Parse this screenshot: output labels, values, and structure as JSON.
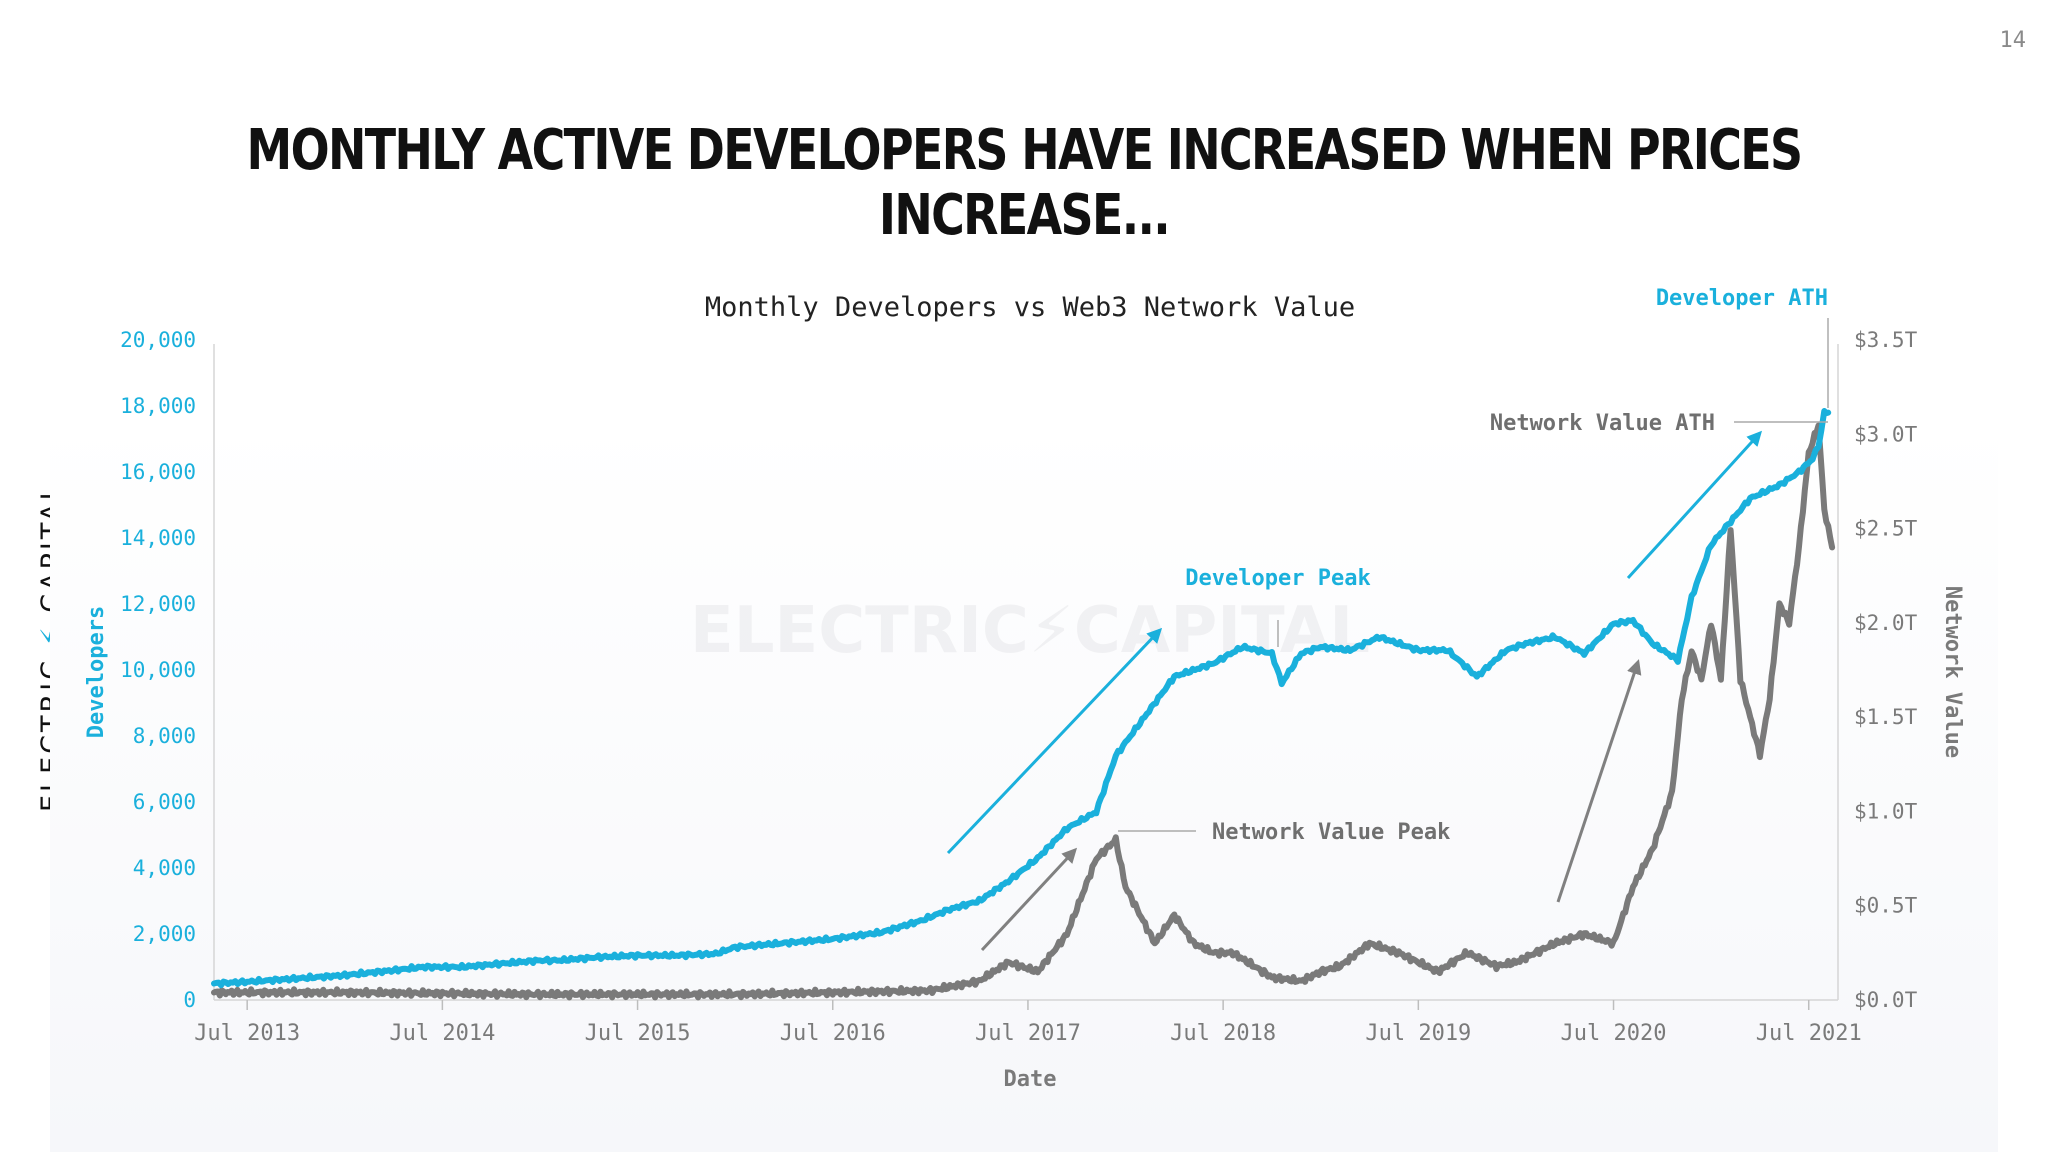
{
  "page_number": "14",
  "headline": "Monthly Active Developers Have Increased When Prices Increase...",
  "brand": {
    "left": "ELECTRIC",
    "right": "CAPITAL",
    "watermark": "ELECTRIC⚡CAPITAL"
  },
  "colors": {
    "developers": "#1ab0dc",
    "network_value": "#7a7a7a",
    "arrow_blue": "#1ab0dc",
    "arrow_grey": "#808080"
  },
  "chart_data": {
    "type": "line",
    "title": "Monthly Developers vs Web3 Network Value",
    "xlabel": "Date",
    "ylabel_left": "Developers",
    "ylabel_right": "Network Value",
    "x_ticks": [
      "Jul 2013",
      "Jul 2014",
      "Jul 2015",
      "Jul 2016",
      "Jul 2017",
      "Jul 2018",
      "Jul 2019",
      "Jul 2020",
      "Jul 2021"
    ],
    "y_left_ticks": [
      "0",
      "2,000",
      "4,000",
      "6,000",
      "8,000",
      "10,000",
      "12,000",
      "14,000",
      "16,000",
      "18,000",
      "20,000"
    ],
    "y_right_ticks": [
      "$0.0T",
      "$0.5T",
      "$1.0T",
      "$1.5T",
      "$2.0T",
      "$2.5T",
      "$3.0T",
      "$3.5T"
    ],
    "ylim_left": [
      0,
      20000
    ],
    "ylim_right": [
      0,
      3.5
    ],
    "xlim": [
      2013.33,
      2021.65
    ],
    "series": [
      {
        "name": "Developers",
        "axis": "left",
        "x": [
          2013.33,
          2013.5,
          2013.75,
          2014.0,
          2014.25,
          2014.4,
          2014.6,
          2014.8,
          2015.0,
          2015.1,
          2015.3,
          2015.5,
          2015.7,
          2015.9,
          2016.0,
          2016.1,
          2016.3,
          2016.5,
          2016.75,
          2016.95,
          2017.1,
          2017.25,
          2017.4,
          2017.55,
          2017.7,
          2017.85,
          2017.95,
          2018.05,
          2018.25,
          2018.45,
          2018.6,
          2018.75,
          2018.8,
          2018.9,
          2019.0,
          2019.15,
          2019.3,
          2019.5,
          2019.65,
          2019.8,
          2019.95,
          2020.05,
          2020.2,
          2020.35,
          2020.5,
          2020.6,
          2020.7,
          2020.83,
          2020.9,
          2021.0,
          2021.1,
          2021.2,
          2021.35,
          2021.45,
          2021.52,
          2021.55,
          2021.58,
          2021.6
        ],
        "y": [
          500,
          550,
          650,
          750,
          900,
          1000,
          1000,
          1100,
          1200,
          1200,
          1300,
          1350,
          1350,
          1400,
          1600,
          1650,
          1750,
          1850,
          2050,
          2400,
          2750,
          3000,
          3600,
          4300,
          5200,
          5700,
          7400,
          8200,
          9800,
          10200,
          10700,
          10500,
          9600,
          10500,
          10700,
          10600,
          11000,
          10600,
          10600,
          9800,
          10600,
          10800,
          11000,
          10500,
          11400,
          11500,
          10800,
          10300,
          12200,
          13800,
          14500,
          15200,
          15600,
          16000,
          16400,
          16800,
          17800,
          17800
        ]
      },
      {
        "name": "Network Value",
        "axis": "right",
        "x": [
          2013.33,
          2014.0,
          2015.0,
          2016.0,
          2016.5,
          2017.0,
          2017.25,
          2017.4,
          2017.55,
          2017.7,
          2017.85,
          2017.95,
          2018.0,
          2018.05,
          2018.15,
          2018.25,
          2018.35,
          2018.45,
          2018.55,
          2018.75,
          2018.9,
          2019.0,
          2019.1,
          2019.25,
          2019.4,
          2019.5,
          2019.6,
          2019.75,
          2019.9,
          2020.0,
          2020.1,
          2020.2,
          2020.35,
          2020.5,
          2020.6,
          2020.7,
          2020.8,
          2020.85,
          2020.9,
          2020.95,
          2021.0,
          2021.05,
          2021.1,
          2021.15,
          2021.25,
          2021.3,
          2021.35,
          2021.4,
          2021.45,
          2021.5,
          2021.55,
          2021.58,
          2021.62
        ],
        "y": [
          0.04,
          0.04,
          0.03,
          0.03,
          0.04,
          0.05,
          0.1,
          0.2,
          0.15,
          0.35,
          0.75,
          0.85,
          0.6,
          0.5,
          0.3,
          0.45,
          0.3,
          0.25,
          0.25,
          0.12,
          0.1,
          0.15,
          0.18,
          0.3,
          0.25,
          0.2,
          0.15,
          0.25,
          0.18,
          0.2,
          0.25,
          0.3,
          0.35,
          0.3,
          0.6,
          0.8,
          1.1,
          1.6,
          1.85,
          1.7,
          2.0,
          1.7,
          2.5,
          1.7,
          1.3,
          1.6,
          2.1,
          2.0,
          2.4,
          2.9,
          3.05,
          2.6,
          2.4
        ]
      }
    ],
    "annotations": [
      "Developer ATH",
      "Network Value ATH",
      "Developer Peak",
      "Network Value Peak"
    ]
  }
}
